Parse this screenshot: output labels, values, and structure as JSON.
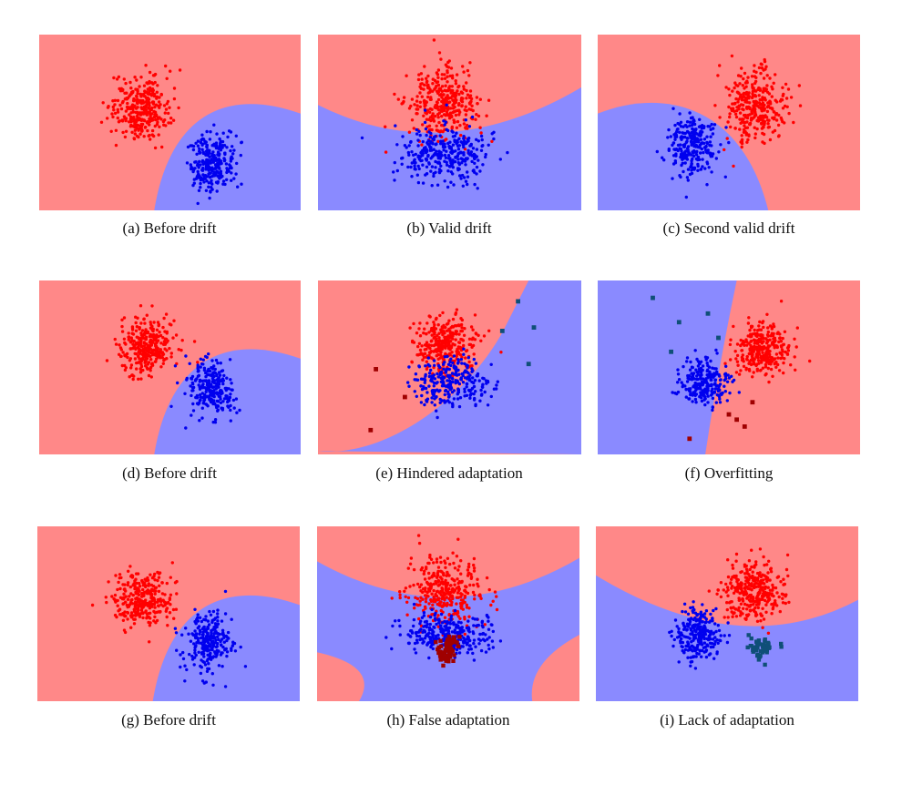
{
  "colors": {
    "red_region": "#ff8888",
    "blue_region": "#8a8aff",
    "red_points": "#ff0000",
    "blue_points": "#0000ee",
    "new_red_points": "#a00000",
    "new_blue_points": "#0f4f78"
  },
  "chart_data": [
    {
      "type": "scatter",
      "caption": "(a) Before drift",
      "boundary": "parabola_right",
      "clusters": [
        {
          "cls": "red",
          "cx": 0.39,
          "cy": 0.58,
          "sx": 0.055,
          "sy": 0.09,
          "n": 320
        },
        {
          "cls": "blue",
          "cx": 0.66,
          "cy": 0.28,
          "sx": 0.045,
          "sy": 0.08,
          "n": 260
        }
      ],
      "new_points": []
    },
    {
      "type": "scatter",
      "caption": "(b) Valid drift",
      "boundary": "convex_up",
      "clusters": [
        {
          "cls": "red",
          "cx": 0.47,
          "cy": 0.6,
          "sx": 0.065,
          "sy": 0.1,
          "n": 340
        },
        {
          "cls": "blue",
          "cx": 0.48,
          "cy": 0.32,
          "sx": 0.09,
          "sy": 0.08,
          "n": 320
        }
      ],
      "new_points": []
    },
    {
      "type": "scatter",
      "caption": "(c) Second valid drift",
      "boundary": "parabola_left",
      "clusters": [
        {
          "cls": "red",
          "cx": 0.6,
          "cy": 0.6,
          "sx": 0.055,
          "sy": 0.1,
          "n": 320
        },
        {
          "cls": "blue",
          "cx": 0.36,
          "cy": 0.37,
          "sx": 0.045,
          "sy": 0.09,
          "n": 260
        }
      ],
      "new_points": []
    },
    {
      "type": "scatter",
      "caption": "(d) Before drift",
      "boundary": "parabola_right",
      "clusters": [
        {
          "cls": "red",
          "cx": 0.41,
          "cy": 0.62,
          "sx": 0.055,
          "sy": 0.08,
          "n": 320
        },
        {
          "cls": "blue",
          "cx": 0.66,
          "cy": 0.38,
          "sx": 0.045,
          "sy": 0.08,
          "n": 260
        }
      ],
      "new_points": []
    },
    {
      "type": "scatter",
      "caption": "(e) Hindered adaptation",
      "boundary": "s_curve",
      "clusters": [
        {
          "cls": "red",
          "cx": 0.48,
          "cy": 0.63,
          "sx": 0.055,
          "sy": 0.08,
          "n": 300
        },
        {
          "cls": "blue",
          "cx": 0.5,
          "cy": 0.42,
          "sx": 0.065,
          "sy": 0.07,
          "n": 280
        }
      ],
      "new_points": [
        {
          "cls": "red",
          "x": 0.22,
          "y": 0.49
        },
        {
          "cls": "red",
          "x": 0.33,
          "y": 0.33
        },
        {
          "cls": "red",
          "x": 0.2,
          "y": 0.14
        },
        {
          "cls": "blue",
          "x": 0.76,
          "y": 0.88
        },
        {
          "cls": "blue",
          "x": 0.82,
          "y": 0.73
        },
        {
          "cls": "blue",
          "x": 0.7,
          "y": 0.71
        },
        {
          "cls": "blue",
          "x": 0.8,
          "y": 0.52
        }
      ]
    },
    {
      "type": "scatter",
      "caption": "(f) Overfitting",
      "boundary": "vertical_tilted",
      "clusters": [
        {
          "cls": "red",
          "cx": 0.63,
          "cy": 0.6,
          "sx": 0.055,
          "sy": 0.07,
          "n": 300
        },
        {
          "cls": "blue",
          "cx": 0.4,
          "cy": 0.42,
          "sx": 0.045,
          "sy": 0.07,
          "n": 240
        }
      ],
      "new_points": [
        {
          "cls": "blue",
          "x": 0.21,
          "y": 0.9
        },
        {
          "cls": "blue",
          "x": 0.31,
          "y": 0.76
        },
        {
          "cls": "blue",
          "x": 0.42,
          "y": 0.81
        },
        {
          "cls": "blue",
          "x": 0.28,
          "y": 0.59
        },
        {
          "cls": "blue",
          "x": 0.46,
          "y": 0.67
        },
        {
          "cls": "red",
          "x": 0.5,
          "y": 0.23
        },
        {
          "cls": "red",
          "x": 0.59,
          "y": 0.3
        },
        {
          "cls": "red",
          "x": 0.56,
          "y": 0.16
        },
        {
          "cls": "red",
          "x": 0.35,
          "y": 0.09
        },
        {
          "cls": "red",
          "x": 0.53,
          "y": 0.2
        }
      ]
    },
    {
      "type": "scatter",
      "caption": "(g) Before drift",
      "boundary": "parabola_right",
      "clusters": [
        {
          "cls": "red",
          "cx": 0.4,
          "cy": 0.58,
          "sx": 0.055,
          "sy": 0.08,
          "n": 320
        },
        {
          "cls": "blue",
          "cx": 0.65,
          "cy": 0.33,
          "sx": 0.045,
          "sy": 0.08,
          "n": 260
        }
      ],
      "new_points": []
    },
    {
      "type": "scatter",
      "caption": "(h) False adaptation",
      "boundary": "hourglass",
      "clusters": [
        {
          "cls": "red",
          "cx": 0.49,
          "cy": 0.63,
          "sx": 0.065,
          "sy": 0.1,
          "n": 340
        },
        {
          "cls": "blue",
          "cx": 0.5,
          "cy": 0.38,
          "sx": 0.085,
          "sy": 0.06,
          "n": 300
        },
        {
          "cls": "darkred",
          "cx": 0.5,
          "cy": 0.3,
          "sx": 0.02,
          "sy": 0.04,
          "n": 60
        }
      ],
      "new_points": []
    },
    {
      "type": "scatter",
      "caption": "(i) Lack of adaptation",
      "boundary": "convex_up_left",
      "clusters": [
        {
          "cls": "red",
          "cx": 0.6,
          "cy": 0.62,
          "sx": 0.055,
          "sy": 0.09,
          "n": 320
        },
        {
          "cls": "blue",
          "cx": 0.39,
          "cy": 0.38,
          "sx": 0.045,
          "sy": 0.07,
          "n": 260
        },
        {
          "cls": "darkblue",
          "cx": 0.63,
          "cy": 0.3,
          "sx": 0.025,
          "sy": 0.04,
          "n": 45
        }
      ],
      "new_points": []
    }
  ]
}
